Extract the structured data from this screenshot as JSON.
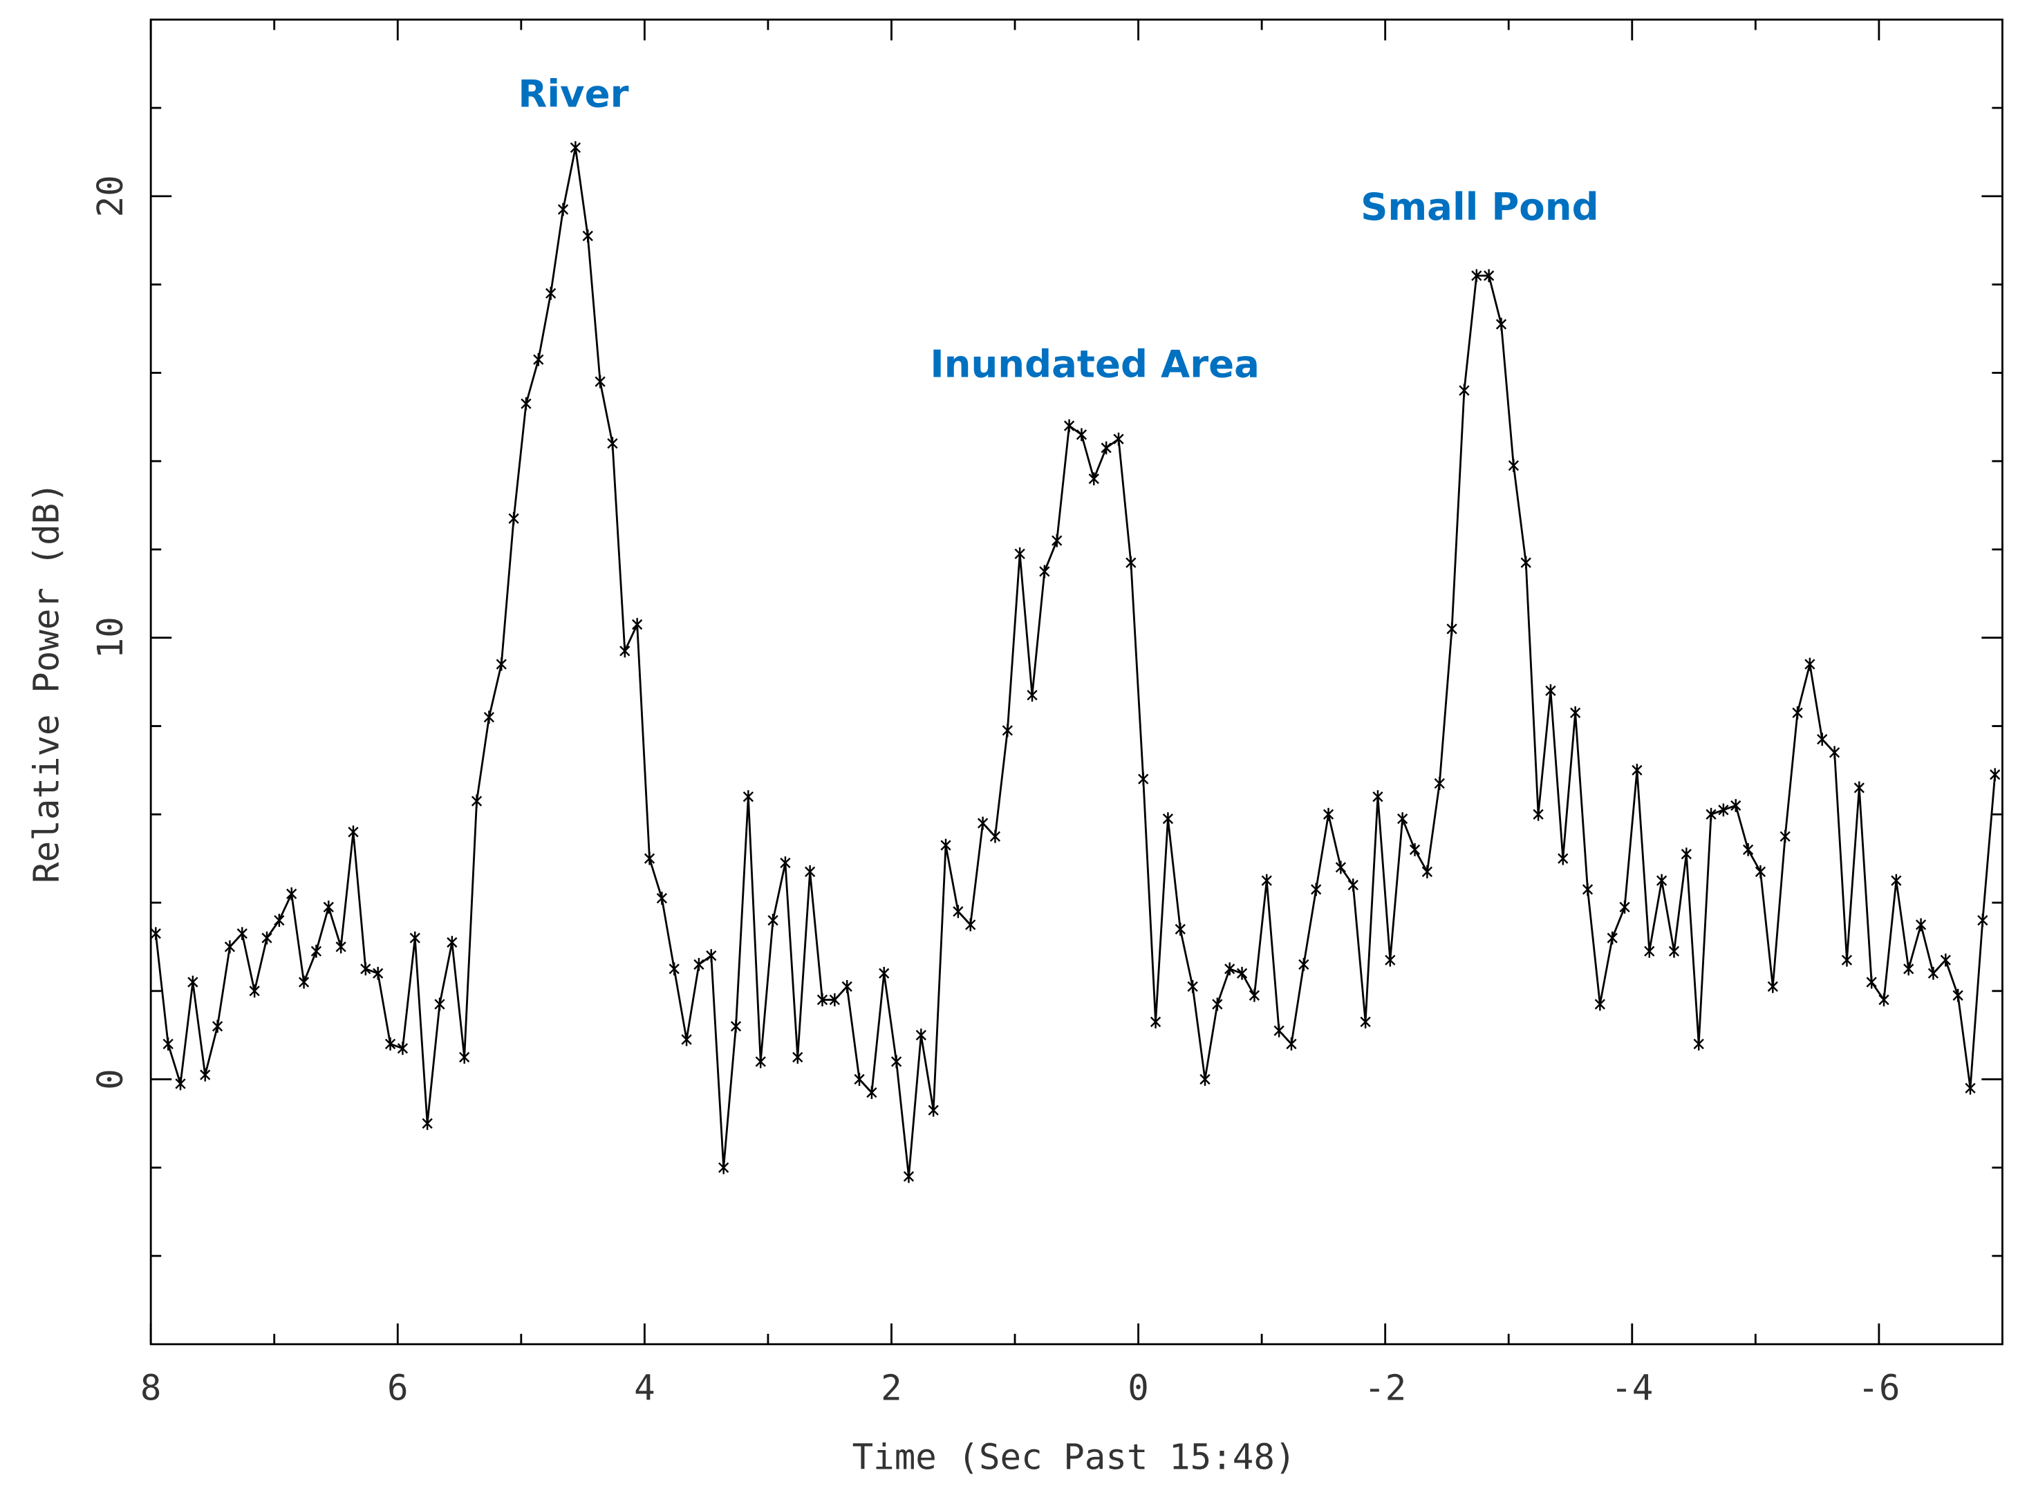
{
  "chart_data": {
    "type": "line",
    "xlabel": "Time (Sec Past 15:48)",
    "ylabel": "Relative Power (dB)",
    "annotations": [
      "River",
      "Inundated Area",
      "Small Pond"
    ],
    "xlim": [
      8,
      -7
    ],
    "ylim": [
      -6,
      24
    ],
    "xticks": [
      8,
      6,
      4,
      2,
      0,
      -2,
      -4,
      -6
    ],
    "yticks": [
      0,
      10,
      20
    ],
    "xminor_ticks": [
      7,
      5,
      3,
      1,
      -1,
      -3,
      -5
    ],
    "yminor_ticks": [
      -4,
      -2,
      2,
      4,
      6,
      8,
      12,
      14,
      16,
      18,
      22
    ],
    "color": "#000000",
    "marker": "asterisk",
    "x": [
      7.96,
      7.86,
      7.76,
      7.66,
      7.56,
      7.46,
      7.36,
      7.26,
      7.16,
      7.06,
      6.96,
      6.86,
      6.76,
      6.66,
      6.56,
      6.46,
      6.36,
      6.26,
      6.16,
      6.06,
      5.96,
      5.86,
      5.76,
      5.66,
      5.56,
      5.46,
      5.36,
      5.26,
      5.16,
      5.06,
      4.96,
      4.86,
      4.76,
      4.66,
      4.56,
      4.46,
      4.36,
      4.26,
      4.16,
      4.06,
      3.96,
      3.86,
      3.76,
      3.66,
      3.56,
      3.46,
      3.36,
      3.26,
      3.16,
      3.06,
      2.96,
      2.86,
      2.76,
      2.66,
      2.56,
      2.46,
      2.36,
      2.26,
      2.16,
      2.06,
      1.96,
      1.86,
      1.76,
      1.66,
      1.56,
      1.46,
      1.36,
      1.26,
      1.16,
      1.06,
      0.96,
      0.86,
      0.76,
      0.66,
      0.56,
      0.46,
      0.36,
      0.26,
      0.16,
      0.06,
      -0.04,
      -0.14,
      -0.24,
      -0.34,
      -0.44,
      -0.54,
      -0.64,
      -0.74,
      -0.84,
      -0.94,
      -1.04,
      -1.14,
      -1.24,
      -1.34,
      -1.44,
      -1.54,
      -1.64,
      -1.74,
      -1.84,
      -1.94,
      -2.04,
      -2.14,
      -2.24,
      -2.34,
      -2.44,
      -2.54,
      -2.64,
      -2.74,
      -2.84,
      -2.94,
      -3.04,
      -3.14,
      -3.24,
      -3.34,
      -3.44,
      -3.54,
      -3.64,
      -3.74,
      -3.84,
      -3.94,
      -4.04,
      -4.14,
      -4.24,
      -4.34,
      -4.44,
      -4.54,
      -4.64,
      -4.74,
      -4.84,
      -4.94,
      -5.04,
      -5.14,
      -5.24,
      -5.34,
      -5.44,
      -5.54,
      -5.64,
      -5.74,
      -5.84,
      -5.94,
      -6.04,
      -6.14,
      -6.24,
      -6.34,
      -6.44,
      -6.54,
      -6.64,
      -6.74,
      -6.84,
      -6.94
    ],
    "values": [
      3.3,
      0.8,
      -0.1,
      2.2,
      0.1,
      1.2,
      3.0,
      3.3,
      2.0,
      3.2,
      3.6,
      4.2,
      2.2,
      2.9,
      3.9,
      3.0,
      5.6,
      2.5,
      2.4,
      0.8,
      0.7,
      3.2,
      -1.0,
      1.7,
      3.1,
      0.5,
      6.3,
      8.2,
      9.4,
      12.7,
      15.3,
      16.3,
      17.8,
      19.7,
      21.1,
      19.1,
      15.8,
      14.4,
      9.7,
      10.3,
      5.0,
      4.1,
      2.5,
      0.9,
      2.6,
      2.8,
      -2.0,
      1.2,
      6.4,
      0.4,
      3.6,
      4.9,
      0.5,
      4.7,
      1.8,
      1.8,
      2.1,
      0.0,
      -0.3,
      2.4,
      0.4,
      -2.2,
      1.0,
      -0.7,
      5.3,
      3.8,
      3.5,
      5.8,
      5.5,
      7.9,
      11.9,
      8.7,
      11.5,
      12.2,
      14.8,
      14.6,
      13.6,
      14.3,
      14.5,
      11.7,
      6.8,
      1.3,
      5.9,
      3.4,
      2.1,
      0.0,
      1.7,
      2.5,
      2.4,
      1.9,
      4.5,
      1.1,
      0.8,
      2.6,
      4.3,
      6.0,
      4.8,
      4.4,
      1.3,
      6.4,
      2.7,
      5.9,
      5.2,
      4.7,
      6.7,
      10.2,
      15.6,
      18.2,
      18.2,
      17.1,
      13.9,
      11.7,
      6.0,
      8.8,
      5.0,
      8.3,
      4.3,
      1.7,
      3.2,
      3.9,
      7.0,
      2.9,
      4.5,
      2.9,
      5.1,
      0.8,
      6.0,
      6.1,
      6.2,
      5.2,
      4.7,
      2.1,
      5.5,
      8.3,
      9.4,
      7.7,
      7.4,
      2.7,
      6.6,
      2.2,
      1.8,
      4.5,
      2.5,
      3.5,
      2.4,
      2.7,
      1.9,
      -0.2,
      3.6,
      6.9
    ]
  }
}
